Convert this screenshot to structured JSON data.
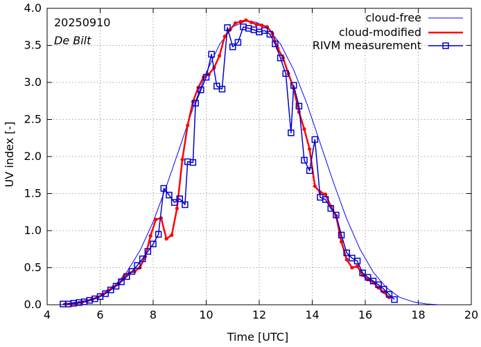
{
  "chart_data": {
    "type": "line",
    "annotations": {
      "date": "20250910",
      "station": "De Bilt"
    },
    "xlabel": "Time  [UTC]",
    "ylabel": "UV index  [-]",
    "xlim": [
      4,
      20
    ],
    "ylim": [
      0,
      4.0
    ],
    "xticks": [
      4,
      6,
      8,
      10,
      12,
      14,
      16,
      18,
      20
    ],
    "yticks": [
      0.0,
      0.5,
      1.0,
      1.5,
      2.0,
      2.5,
      3.0,
      3.5,
      4.0
    ],
    "legend_position": "top-right",
    "series": [
      {
        "name": "cloud-free",
        "color": "#0000ff",
        "style": "thin-line",
        "x": [
          4.6,
          5.0,
          5.5,
          6.0,
          6.5,
          7.0,
          7.5,
          8.0,
          8.5,
          9.0,
          9.5,
          10.0,
          10.5,
          11.0,
          11.5,
          11.9,
          12.3,
          12.8,
          13.3,
          13.8,
          14.3,
          14.8,
          15.3,
          15.8,
          16.3,
          16.8,
          17.3,
          17.8,
          18.3,
          18.8
        ],
        "y": [
          0.01,
          0.03,
          0.06,
          0.12,
          0.24,
          0.44,
          0.73,
          1.12,
          1.6,
          2.12,
          2.65,
          3.13,
          3.51,
          3.75,
          3.83,
          3.81,
          3.74,
          3.52,
          3.17,
          2.71,
          2.18,
          1.65,
          1.16,
          0.75,
          0.44,
          0.23,
          0.1,
          0.04,
          0.01,
          0.0
        ]
      },
      {
        "name": "cloud-modified",
        "color": "#ff0000",
        "style": "thick-line-dots",
        "x": [
          4.7,
          4.9,
          5.1,
          5.3,
          5.5,
          5.7,
          5.9,
          6.1,
          6.3,
          6.5,
          6.7,
          6.9,
          7.1,
          7.3,
          7.5,
          7.7,
          7.9,
          8.1,
          8.3,
          8.5,
          8.7,
          8.9,
          9.1,
          9.3,
          9.5,
          9.7,
          9.9,
          10.1,
          10.3,
          10.5,
          10.7,
          10.9,
          11.1,
          11.3,
          11.5,
          11.7,
          11.9,
          12.1,
          12.3,
          12.5,
          12.7,
          12.9,
          13.1,
          13.3,
          13.5,
          13.7,
          13.9,
          14.1,
          14.3,
          14.5,
          14.7,
          14.9,
          15.1,
          15.3,
          15.5,
          15.7,
          15.9,
          16.1,
          16.3,
          16.5,
          16.7,
          16.9
        ],
        "y": [
          0.01,
          0.01,
          0.02,
          0.03,
          0.05,
          0.07,
          0.1,
          0.14,
          0.19,
          0.24,
          0.28,
          0.38,
          0.43,
          0.45,
          0.5,
          0.65,
          0.93,
          1.15,
          1.17,
          0.89,
          0.94,
          1.3,
          1.96,
          2.42,
          2.74,
          2.93,
          3.07,
          3.11,
          3.2,
          3.36,
          3.62,
          3.71,
          3.8,
          3.82,
          3.84,
          3.81,
          3.78,
          3.77,
          3.75,
          3.66,
          3.46,
          3.33,
          3.12,
          2.92,
          2.6,
          2.37,
          2.1,
          1.6,
          1.52,
          1.49,
          1.33,
          1.2,
          0.85,
          0.61,
          0.5,
          0.52,
          0.4,
          0.34,
          0.3,
          0.23,
          0.17,
          0.1
        ]
      },
      {
        "name": "RIVM measurement",
        "color": "#0000cc",
        "style": "line-squares",
        "x": [
          4.6,
          4.8,
          5.0,
          5.2,
          5.4,
          5.6,
          5.8,
          6.0,
          6.2,
          6.4,
          6.6,
          6.8,
          7.0,
          7.2,
          7.4,
          7.6,
          7.8,
          8.0,
          8.2,
          8.4,
          8.6,
          8.8,
          9.0,
          9.2,
          9.3,
          9.5,
          9.6,
          9.8,
          10.0,
          10.2,
          10.4,
          10.6,
          10.8,
          11.0,
          11.2,
          11.4,
          11.6,
          11.8,
          12.0,
          12.2,
          12.4,
          12.6,
          12.8,
          13.0,
          13.2,
          13.3,
          13.5,
          13.7,
          13.9,
          14.1,
          14.3,
          14.5,
          14.7,
          14.9,
          15.1,
          15.3,
          15.5,
          15.7,
          15.9,
          16.1,
          16.3,
          16.5,
          16.7,
          16.9,
          17.1
        ],
        "y": [
          0.01,
          0.01,
          0.02,
          0.03,
          0.04,
          0.06,
          0.08,
          0.11,
          0.15,
          0.2,
          0.25,
          0.31,
          0.38,
          0.45,
          0.53,
          0.62,
          0.72,
          0.82,
          0.95,
          1.57,
          1.48,
          1.38,
          1.43,
          1.35,
          1.93,
          1.92,
          2.72,
          2.9,
          3.07,
          3.38,
          2.95,
          2.91,
          3.74,
          3.48,
          3.54,
          3.75,
          3.73,
          3.71,
          3.68,
          3.7,
          3.65,
          3.52,
          3.33,
          3.12,
          2.32,
          2.96,
          2.68,
          1.95,
          1.81,
          2.23,
          1.45,
          1.42,
          1.3,
          1.21,
          0.94,
          0.7,
          0.63,
          0.59,
          0.43,
          0.37,
          0.32,
          0.27,
          0.21,
          0.14,
          0.07
        ]
      }
    ]
  }
}
